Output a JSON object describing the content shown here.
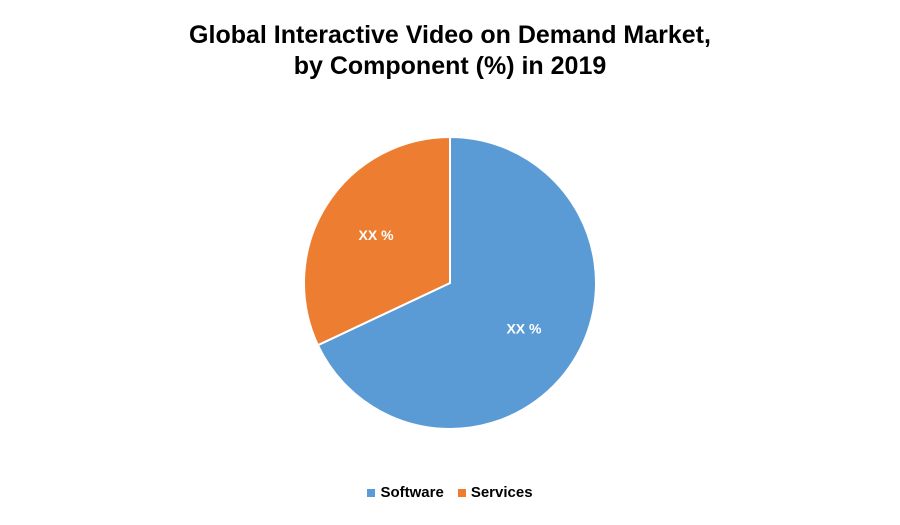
{
  "chart_data": {
    "type": "pie",
    "title_lines": [
      "Global Interactive Video on Demand Market,",
      "by Component (%) in 2019"
    ],
    "slices": [
      {
        "name": "Software",
        "value": 68,
        "label": "XX %",
        "color": "#5B9BD5"
      },
      {
        "name": "Services",
        "value": 32,
        "label": "XX %",
        "color": "#ED7D31"
      }
    ],
    "legend_position": "bottom"
  }
}
